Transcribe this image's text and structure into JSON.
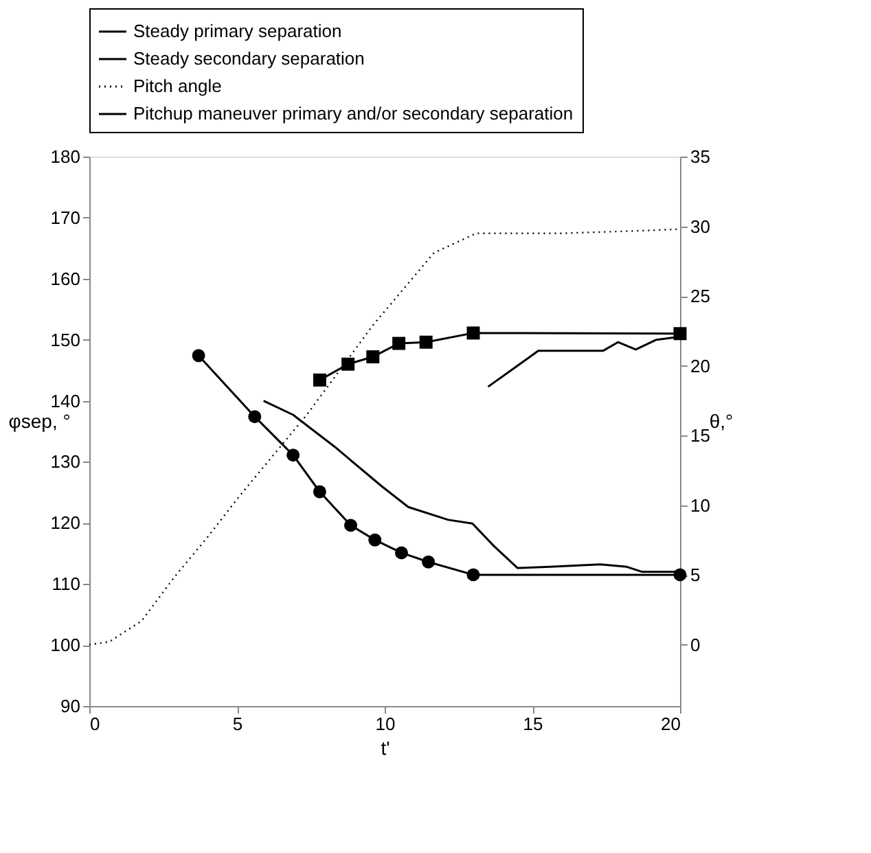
{
  "chart_data": {
    "type": "line",
    "xlabel": "t'",
    "ylabel": "φsep, °",
    "y2label": "θ,°",
    "xlim": [
      0,
      20
    ],
    "xticks": [
      0,
      5,
      10,
      15,
      20
    ],
    "ylim": [
      90,
      180
    ],
    "yticks": [
      90,
      100,
      110,
      120,
      130,
      140,
      150,
      160,
      170,
      180
    ],
    "y2lim": [
      -4.4,
      35
    ],
    "y2ticks": [
      0,
      5,
      10,
      15,
      20,
      25,
      30,
      35
    ],
    "grid": false,
    "legend": "top",
    "series": [
      {
        "name": "Steady primary separation",
        "color": "#000000",
        "marker": "circle",
        "line_style": "solid",
        "x": [
          3.7,
          5.6,
          6.9,
          7.8,
          8.85,
          9.67,
          10.57,
          11.48,
          13.0,
          20
        ],
        "values": [
          147.4,
          137.4,
          131.1,
          125.1,
          119.6,
          117.2,
          115.1,
          113.6,
          111.5,
          111.5
        ]
      },
      {
        "name": "Steady secondary separation",
        "color": "#000000",
        "marker": "square",
        "line_style": "solid",
        "x": [
          7.8,
          8.76,
          9.6,
          10.48,
          11.4,
          13.0,
          20
        ],
        "values": [
          143.4,
          146.0,
          147.2,
          149.4,
          149.6,
          151.1,
          151.0
        ]
      },
      {
        "name": "Pitch angle",
        "color": "#000000",
        "marker": "none",
        "line_style": "dotted",
        "axis": "y2",
        "x": [
          0,
          0.67,
          1.77,
          2.9,
          4.0,
          5.1,
          7.37,
          9.6,
          11.67,
          13.1,
          16,
          18.9,
          20
        ],
        "values": [
          0,
          0.2,
          1.7,
          4.9,
          7.7,
          10.7,
          16.5,
          22.9,
          28.1,
          29.5,
          29.5,
          29.7,
          29.8
        ]
      },
      {
        "name": "Pitchup maneuver primary and/or secondary separation",
        "color": "#000000",
        "marker": "none",
        "line_style": "solid",
        "x": [
          5.9,
          6.9,
          8.3,
          9.9,
          10.8,
          12.15,
          12.97,
          13.7,
          14.5,
          15.6,
          17.3,
          18.2,
          18.7,
          20
        ],
        "values": [
          140.0,
          137.7,
          132.5,
          126.0,
          122.6,
          120.5,
          119.9,
          116.2,
          112.6,
          112.8,
          113.2,
          112.8,
          112.0,
          112.0
        ]
      },
      {
        "color": "#000000",
        "marker": "none",
        "line_style": "solid",
        "x": [
          13.5,
          14.4,
          15.2,
          16.9,
          17.4,
          17.9,
          18.5,
          19.2,
          20
        ],
        "values": [
          142.3,
          145.4,
          148.2,
          148.2,
          148.2,
          149.6,
          148.4,
          150.0,
          150.5
        ]
      }
    ]
  }
}
